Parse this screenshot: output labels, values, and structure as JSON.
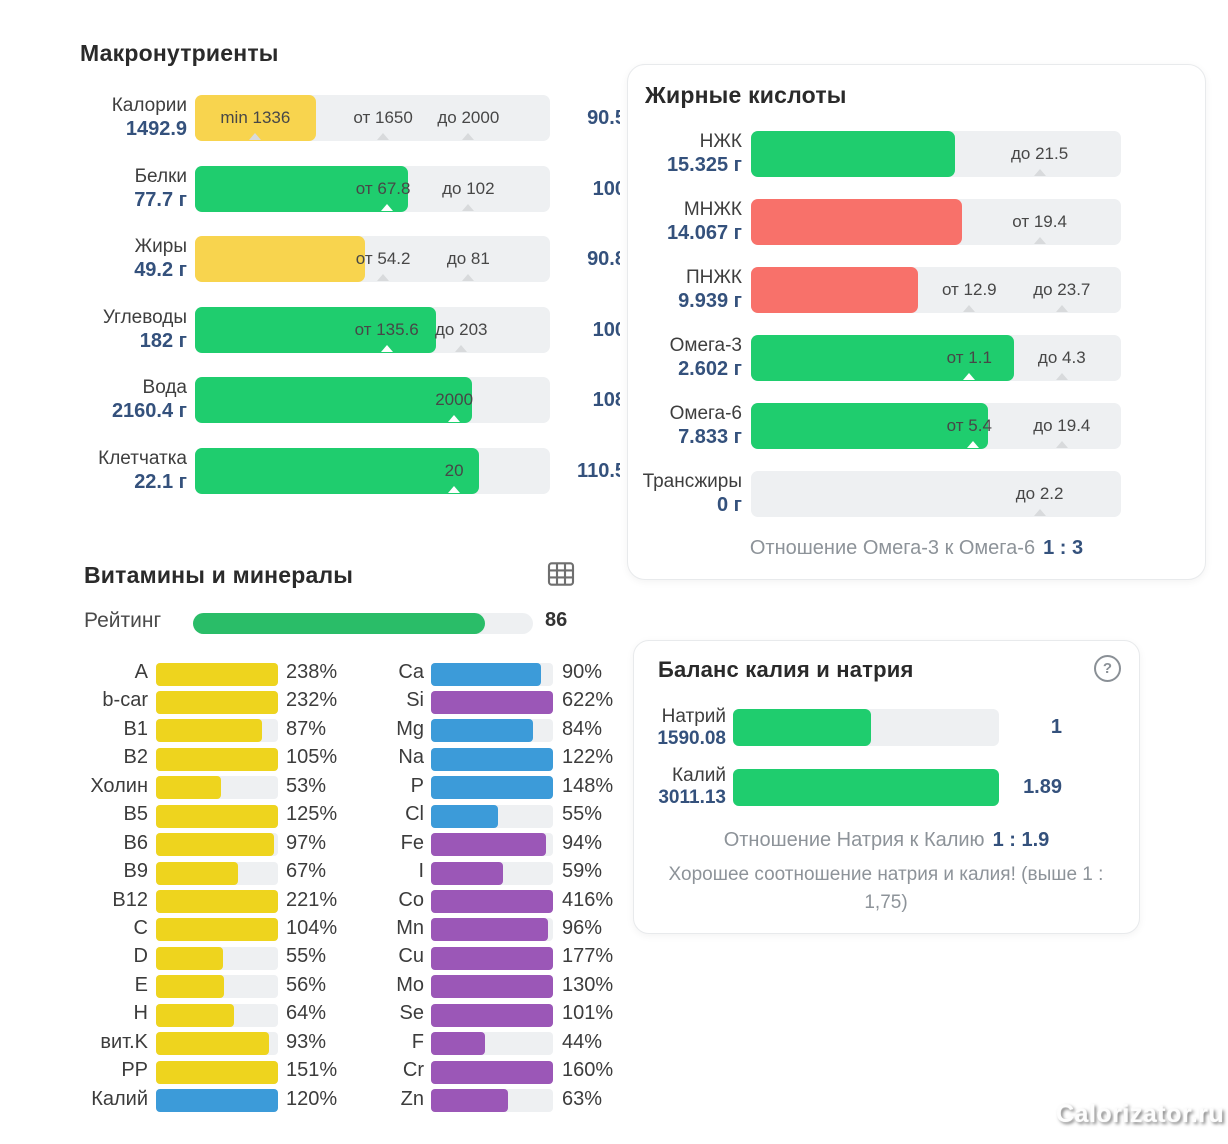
{
  "colors": {
    "green": "#1fcd6e",
    "green_dark": "#2abd68",
    "yellow": "#f8d44e",
    "yellow_vit": "#eed41e",
    "red": "#f8716a",
    "blue": "#3c9bd9",
    "purple": "#9b57b7",
    "track": "#eef0f2",
    "navy": "#34517c"
  },
  "watermark": {
    "text": "Calorizator.ru"
  },
  "macronutrients": {
    "title": "Макронутриенты",
    "rows": [
      {
        "name": "Калории",
        "value": "1492.9",
        "percent": "90.5",
        "fill": 34,
        "color": "yellow",
        "bar_labels": [
          {
            "text": "min 1336",
            "pos": 17
          },
          {
            "text": "от 1650",
            "pos": 53
          },
          {
            "text": "до 2000",
            "pos": 77
          }
        ],
        "ticks": [
          17,
          53,
          77
        ],
        "notches": []
      },
      {
        "name": "Белки",
        "value": "77.7 г",
        "percent": "100",
        "fill": 60,
        "color": "green",
        "bar_labels": [
          {
            "text": "от 67.8",
            "pos": 53
          },
          {
            "text": "до 102",
            "pos": 77
          }
        ],
        "ticks": [
          77
        ],
        "notches": [
          54
        ]
      },
      {
        "name": "Жиры",
        "value": "49.2 г",
        "percent": "90.8",
        "fill": 48,
        "color": "yellow",
        "bar_labels": [
          {
            "text": "от 54.2",
            "pos": 53
          },
          {
            "text": "до 81",
            "pos": 77
          }
        ],
        "ticks": [
          53,
          77
        ],
        "notches": []
      },
      {
        "name": "Углеводы",
        "value": "182 г",
        "percent": "100",
        "fill": 68,
        "color": "green",
        "bar_labels": [
          {
            "text": "от 135.6",
            "pos": 54
          },
          {
            "text": "до 203",
            "pos": 75
          }
        ],
        "ticks": [
          75
        ],
        "notches": [
          54
        ]
      },
      {
        "name": "Вода",
        "value": "2160.4 г",
        "percent": "108",
        "fill": 78,
        "color": "green",
        "bar_labels": [
          {
            "text": "2000",
            "pos": 73
          }
        ],
        "ticks": [],
        "notches": [
          73
        ]
      },
      {
        "name": "Клетчатка",
        "value": "22.1 г",
        "percent": "110.5",
        "fill": 80,
        "color": "green",
        "bar_labels": [
          {
            "text": "20",
            "pos": 73
          }
        ],
        "ticks": [],
        "notches": [
          73
        ]
      }
    ]
  },
  "fatty_acids": {
    "title": "Жирные кислоты",
    "rows": [
      {
        "name": "НЖК",
        "value": "15.325 г",
        "fill": 55,
        "color": "green",
        "bar_labels": [
          {
            "text": "до 21.5",
            "pos": 78
          }
        ],
        "ticks": [
          78
        ],
        "notches": []
      },
      {
        "name": "МНЖК",
        "value": "14.067 г",
        "fill": 57,
        "color": "red",
        "bar_labels": [
          {
            "text": "от 19.4",
            "pos": 78
          }
        ],
        "ticks": [
          78
        ],
        "notches": []
      },
      {
        "name": "ПНЖК",
        "value": "9.939 г",
        "fill": 45,
        "color": "red",
        "bar_labels": [
          {
            "text": "от 12.9",
            "pos": 59
          },
          {
            "text": "до 23.7",
            "pos": 84
          }
        ],
        "ticks": [
          59,
          84
        ],
        "notches": []
      },
      {
        "name": "Омега-3",
        "value": "2.602 г",
        "fill": 71,
        "color": "green",
        "bar_labels": [
          {
            "text": "от 1.1",
            "pos": 59
          },
          {
            "text": "до 4.3",
            "pos": 84
          }
        ],
        "ticks": [
          84
        ],
        "notches": [
          59
        ]
      },
      {
        "name": "Омега-6",
        "value": "7.833 г",
        "fill": 64,
        "color": "green",
        "bar_labels": [
          {
            "text": "от 5.4",
            "pos": 59
          },
          {
            "text": "до 19.4",
            "pos": 84
          }
        ],
        "ticks": [
          84
        ],
        "notches": [
          60
        ]
      },
      {
        "name": "Трансжиры",
        "value": "0 г",
        "fill": 0,
        "color": "green",
        "bar_labels": [
          {
            "text": "до 2.2",
            "pos": 78
          }
        ],
        "ticks": [
          78
        ],
        "notches": []
      }
    ],
    "footer": {
      "label": "Отношение Омега-3 к Омега-6",
      "value": "1 : 3"
    }
  },
  "vitamins": {
    "title": "Витамины и минералы",
    "table_icon": "table-icon",
    "rating": {
      "label": "Рейтинг",
      "value": "86",
      "fill": 86
    },
    "left": [
      {
        "label": "A",
        "percent": "238%",
        "fill": 100,
        "color": "yellow_vit"
      },
      {
        "label": "b-car",
        "percent": "232%",
        "fill": 100,
        "color": "yellow_vit"
      },
      {
        "label": "B1",
        "percent": "87%",
        "fill": 87,
        "color": "yellow_vit"
      },
      {
        "label": "B2",
        "percent": "105%",
        "fill": 100,
        "color": "yellow_vit"
      },
      {
        "label": "Холин",
        "percent": "53%",
        "fill": 53,
        "color": "yellow_vit"
      },
      {
        "label": "B5",
        "percent": "125%",
        "fill": 100,
        "color": "yellow_vit"
      },
      {
        "label": "B6",
        "percent": "97%",
        "fill": 97,
        "color": "yellow_vit"
      },
      {
        "label": "B9",
        "percent": "67%",
        "fill": 67,
        "color": "yellow_vit"
      },
      {
        "label": "B12",
        "percent": "221%",
        "fill": 100,
        "color": "yellow_vit"
      },
      {
        "label": "C",
        "percent": "104%",
        "fill": 100,
        "color": "yellow_vit"
      },
      {
        "label": "D",
        "percent": "55%",
        "fill": 55,
        "color": "yellow_vit"
      },
      {
        "label": "E",
        "percent": "56%",
        "fill": 56,
        "color": "yellow_vit"
      },
      {
        "label": "H",
        "percent": "64%",
        "fill": 64,
        "color": "yellow_vit"
      },
      {
        "label": "вит.K",
        "percent": "93%",
        "fill": 93,
        "color": "yellow_vit"
      },
      {
        "label": "PP",
        "percent": "151%",
        "fill": 100,
        "color": "yellow_vit"
      },
      {
        "label": "Калий",
        "percent": "120%",
        "fill": 100,
        "color": "blue"
      }
    ],
    "right": [
      {
        "label": "Ca",
        "percent": "90%",
        "fill": 90,
        "color": "blue"
      },
      {
        "label": "Si",
        "percent": "622%",
        "fill": 100,
        "color": "purple"
      },
      {
        "label": "Mg",
        "percent": "84%",
        "fill": 84,
        "color": "blue"
      },
      {
        "label": "Na",
        "percent": "122%",
        "fill": 100,
        "color": "blue"
      },
      {
        "label": "P",
        "percent": "148%",
        "fill": 100,
        "color": "blue"
      },
      {
        "label": "Cl",
        "percent": "55%",
        "fill": 55,
        "color": "blue"
      },
      {
        "label": "Fe",
        "percent": "94%",
        "fill": 94,
        "color": "purple"
      },
      {
        "label": "I",
        "percent": "59%",
        "fill": 59,
        "color": "purple"
      },
      {
        "label": "Co",
        "percent": "416%",
        "fill": 100,
        "color": "purple"
      },
      {
        "label": "Mn",
        "percent": "96%",
        "fill": 96,
        "color": "purple"
      },
      {
        "label": "Cu",
        "percent": "177%",
        "fill": 100,
        "color": "purple"
      },
      {
        "label": "Mo",
        "percent": "130%",
        "fill": 100,
        "color": "purple"
      },
      {
        "label": "Se",
        "percent": "101%",
        "fill": 100,
        "color": "purple"
      },
      {
        "label": "F",
        "percent": "44%",
        "fill": 44,
        "color": "purple"
      },
      {
        "label": "Cr",
        "percent": "160%",
        "fill": 100,
        "color": "purple"
      },
      {
        "label": "Zn",
        "percent": "63%",
        "fill": 63,
        "color": "purple"
      }
    ]
  },
  "balance": {
    "title": "Баланс калия и натрия",
    "help_symbol": "?",
    "rows": [
      {
        "name": "Натрий",
        "value": "1590.08",
        "percent": "1",
        "fill": 52,
        "color": "green",
        "bar_labels": [],
        "ticks": [],
        "notches": []
      },
      {
        "name": "Калий",
        "value": "3011.13",
        "percent": "1.89",
        "fill": 100,
        "color": "green",
        "bar_labels": [],
        "ticks": [],
        "notches": []
      }
    ],
    "ratio_line": {
      "label": "Отношение Натрия к Калию",
      "value": "1 : 1.9"
    },
    "note": "Хорошее соотношение натрия и калия! (выше 1 : 1,75)"
  }
}
